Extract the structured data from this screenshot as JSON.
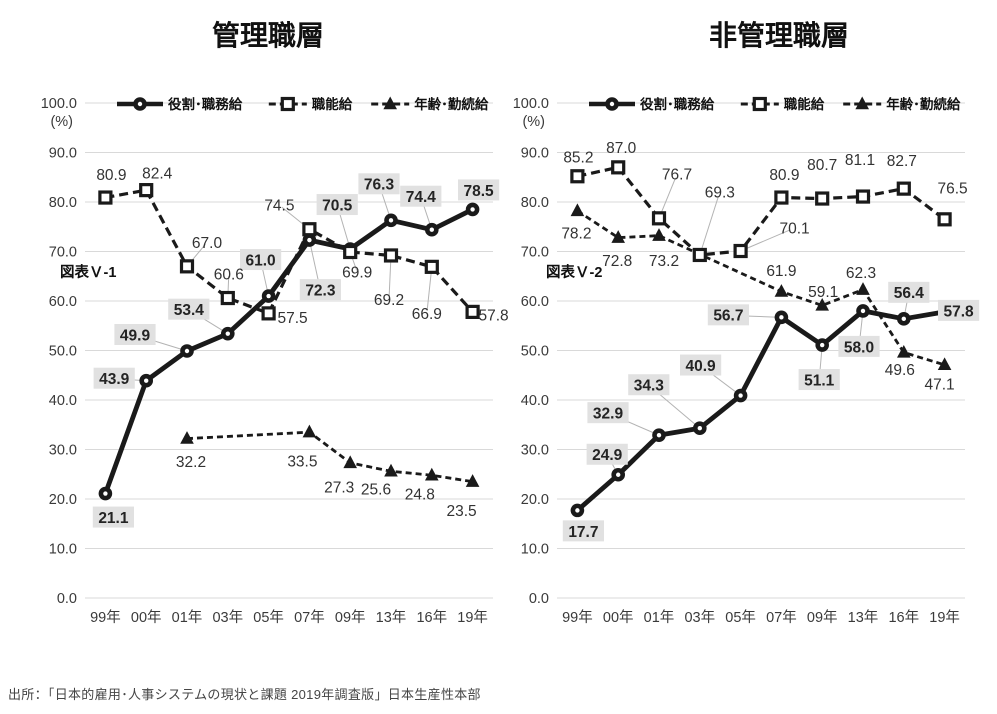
{
  "source": "出所：「日本的雇用･人事システムの現状と課題 2019年調査版」日本生産性本部",
  "colors": {
    "line": "#1a1a1a",
    "grid": "#d9d9d9",
    "axis_text": "#3a3a3a",
    "label_text": "#242424",
    "label_highlight_bg": "#e1e1e1",
    "leader": "#b3b3b3"
  },
  "y_axis": {
    "unit": "(%)",
    "tick_labels": [
      "100.0",
      "90.0",
      "80.0",
      "70.0",
      "60.0",
      "50.0",
      "40.0",
      "30.0",
      "20.0",
      "10.0",
      "0.0"
    ]
  },
  "x_axis": {
    "categories": [
      "99年",
      "00年",
      "01年",
      "03年",
      "05年",
      "07年",
      "09年",
      "13年",
      "16年",
      "19年"
    ]
  },
  "legend": [
    {
      "name": "役割･職務給",
      "marker": "circle",
      "line": "solid"
    },
    {
      "name": "職能給",
      "marker": "square",
      "line": "dashed"
    },
    {
      "name": "年齢･勤続給",
      "marker": "triangle",
      "line": "dashed"
    }
  ],
  "chart_data": [
    {
      "type": "line",
      "title": "管理職層",
      "figure_label": "図表Ｖ-1",
      "ylim": [
        0,
        100
      ],
      "grid": true,
      "categories": [
        "99年",
        "00年",
        "01年",
        "03年",
        "05年",
        "07年",
        "09年",
        "13年",
        "16年",
        "19年"
      ],
      "series": [
        {
          "name": "役割･職務給",
          "marker": "circle",
          "line": "solid",
          "highlighted_labels": true,
          "values": [
            21.1,
            43.9,
            49.9,
            53.4,
            61.0,
            72.3,
            70.5,
            76.3,
            74.4,
            78.5
          ]
        },
        {
          "name": "職能給",
          "marker": "square",
          "line": "dashed",
          "highlighted_labels": false,
          "values": [
            80.9,
            82.4,
            67.0,
            60.6,
            57.5,
            74.5,
            69.9,
            69.2,
            66.9,
            57.8
          ]
        },
        {
          "name": "年齢･勤続給",
          "marker": "triangle",
          "line": "dashed",
          "highlighted_labels": false,
          "values": [
            null,
            null,
            32.2,
            null,
            null,
            33.5,
            27.3,
            25.6,
            24.8,
            23.5
          ]
        }
      ]
    },
    {
      "type": "line",
      "title": "非管理職層",
      "figure_label": "図表Ｖ-2",
      "ylim": [
        0,
        100
      ],
      "grid": true,
      "categories": [
        "99年",
        "00年",
        "01年",
        "03年",
        "05年",
        "07年",
        "09年",
        "13年",
        "16年",
        "19年"
      ],
      "series": [
        {
          "name": "役割･職務給",
          "marker": "circle",
          "line": "solid",
          "highlighted_labels": true,
          "values": [
            17.7,
            24.9,
            32.9,
            34.3,
            40.9,
            56.7,
            51.1,
            58.0,
            56.4,
            57.8
          ]
        },
        {
          "name": "職能給",
          "marker": "square",
          "line": "dashed",
          "highlighted_labels": false,
          "values": [
            85.2,
            87.0,
            76.7,
            69.3,
            70.1,
            80.9,
            80.7,
            81.1,
            82.7,
            76.5
          ]
        },
        {
          "name": "年齢･勤続給",
          "marker": "triangle",
          "line": "dashed",
          "highlighted_labels": false,
          "values": [
            78.2,
            72.8,
            73.2,
            null,
            null,
            61.9,
            59.1,
            62.3,
            49.6,
            47.1
          ]
        }
      ]
    }
  ]
}
